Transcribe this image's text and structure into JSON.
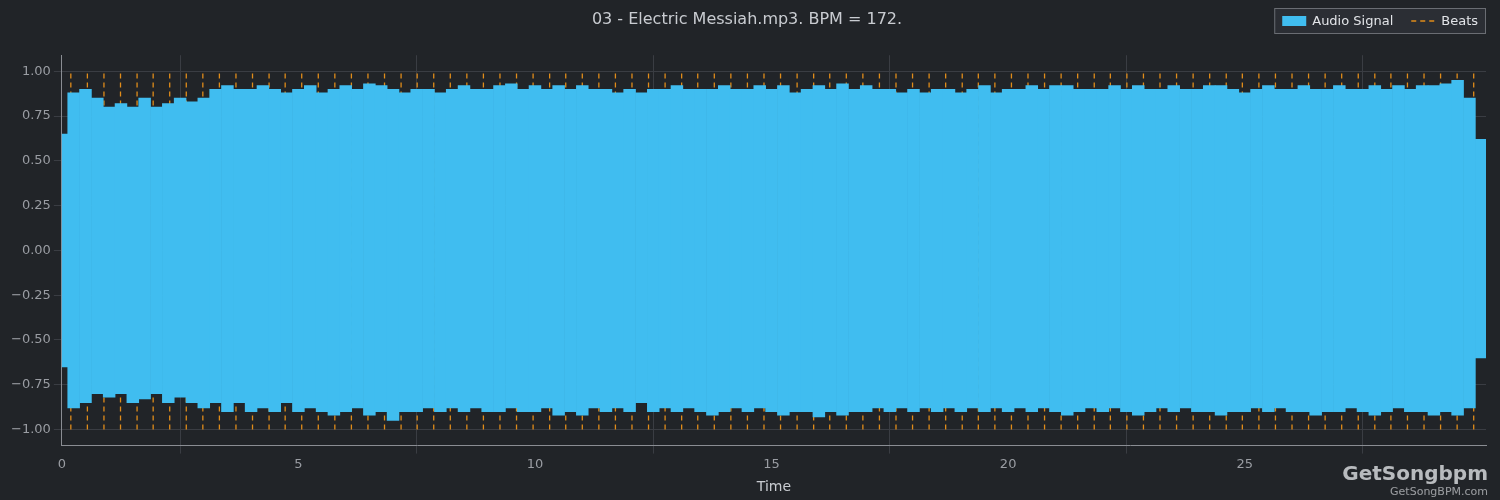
{
  "chart_data": {
    "type": "bar",
    "title": "03 - Electric Messiah.mp3. BPM = 172.",
    "x_label": "Time",
    "xlim": [
      0,
      30.1
    ],
    "xticks": [
      0,
      5,
      10,
      15,
      20,
      25
    ],
    "ylim": [
      -1.09,
      1.09
    ],
    "yticks": [
      {
        "value": -1,
        "label": "−1.00"
      },
      {
        "value": -0.75,
        "label": "−0.75"
      },
      {
        "value": -0.5,
        "label": "−0.50"
      },
      {
        "value": -0.25,
        "label": "−0.25"
      },
      {
        "value": 0,
        "label": "0.00"
      },
      {
        "value": 0.25,
        "label": "0.25"
      },
      {
        "value": 0.5,
        "label": "0.50"
      },
      {
        "value": 0.75,
        "label": "0.75"
      },
      {
        "value": 1,
        "label": "1.00"
      }
    ],
    "grid": true,
    "legend": "top-right",
    "annotations": [
      "GetSongbpm",
      "GetSongBPM.com"
    ],
    "series": [
      {
        "name": "Audio Signal",
        "type": "bar",
        "color": "#40bdf0",
        "x": [
          0,
          0.25,
          0.5,
          0.75,
          1,
          1.25,
          1.5,
          1.75,
          2,
          2.25,
          2.5,
          2.75,
          3,
          3.25,
          3.5,
          3.75,
          4,
          4.25,
          4.5,
          4.75,
          5,
          5.25,
          5.5,
          5.75,
          6,
          6.25,
          6.5,
          6.75,
          7,
          7.25,
          7.5,
          7.75,
          8,
          8.25,
          8.5,
          8.75,
          9,
          9.25,
          9.5,
          9.75,
          10,
          10.25,
          10.5,
          10.75,
          11,
          11.25,
          11.5,
          11.75,
          12,
          12.25,
          12.5,
          12.75,
          13,
          13.25,
          13.5,
          13.75,
          14,
          14.25,
          14.5,
          14.75,
          15,
          15.25,
          15.5,
          15.75,
          16,
          16.25,
          16.5,
          16.75,
          17,
          17.25,
          17.5,
          17.75,
          18,
          18.25,
          18.5,
          18.75,
          19,
          19.25,
          19.5,
          19.75,
          20,
          20.25,
          20.5,
          20.75,
          21,
          21.25,
          21.5,
          21.75,
          22,
          22.25,
          22.5,
          22.75,
          23,
          23.25,
          23.5,
          23.75,
          24,
          24.25,
          24.5,
          24.75,
          25,
          25.25,
          25.5,
          25.75,
          26,
          26.25,
          26.5,
          26.75,
          27,
          27.25,
          27.5,
          27.75,
          28,
          28.25,
          28.5,
          28.75,
          29,
          29.25,
          29.5,
          29.75,
          30
        ],
        "values": [
          [
            -0.65,
            0.65
          ],
          [
            -0.88,
            0.88
          ],
          [
            -0.85,
            0.9
          ],
          [
            -0.8,
            0.85
          ],
          [
            -0.82,
            0.8
          ],
          [
            -0.8,
            0.82
          ],
          [
            -0.85,
            0.8
          ],
          [
            -0.83,
            0.85
          ],
          [
            -0.8,
            0.8
          ],
          [
            -0.85,
            0.82
          ],
          [
            -0.82,
            0.85
          ],
          [
            -0.85,
            0.83
          ],
          [
            -0.88,
            0.85
          ],
          [
            -0.85,
            0.9
          ],
          [
            -0.9,
            0.92
          ],
          [
            -0.85,
            0.9
          ],
          [
            -0.9,
            0.9
          ],
          [
            -0.88,
            0.92
          ],
          [
            -0.9,
            0.9
          ],
          [
            -0.85,
            0.88
          ],
          [
            -0.9,
            0.9
          ],
          [
            -0.88,
            0.92
          ],
          [
            -0.9,
            0.88
          ],
          [
            -0.92,
            0.9
          ],
          [
            -0.9,
            0.92
          ],
          [
            -0.88,
            0.9
          ],
          [
            -0.92,
            0.93
          ],
          [
            -0.9,
            0.92
          ],
          [
            -0.95,
            0.9
          ],
          [
            -0.9,
            0.88
          ],
          [
            -0.9,
            0.9
          ],
          [
            -0.88,
            0.9
          ],
          [
            -0.9,
            0.88
          ],
          [
            -0.88,
            0.9
          ],
          [
            -0.9,
            0.92
          ],
          [
            -0.88,
            0.9
          ],
          [
            -0.9,
            0.9
          ],
          [
            -0.9,
            0.92
          ],
          [
            -0.88,
            0.93
          ],
          [
            -0.9,
            0.9
          ],
          [
            -0.9,
            0.92
          ],
          [
            -0.88,
            0.9
          ],
          [
            -0.92,
            0.92
          ],
          [
            -0.9,
            0.9
          ],
          [
            -0.92,
            0.92
          ],
          [
            -0.88,
            0.9
          ],
          [
            -0.9,
            0.9
          ],
          [
            -0.88,
            0.88
          ],
          [
            -0.9,
            0.9
          ],
          [
            -0.85,
            0.88
          ],
          [
            -0.9,
            0.9
          ],
          [
            -0.88,
            0.9
          ],
          [
            -0.9,
            0.92
          ],
          [
            -0.88,
            0.9
          ],
          [
            -0.9,
            0.9
          ],
          [
            -0.92,
            0.9
          ],
          [
            -0.9,
            0.92
          ],
          [
            -0.88,
            0.9
          ],
          [
            -0.9,
            0.9
          ],
          [
            -0.88,
            0.92
          ],
          [
            -0.9,
            0.9
          ],
          [
            -0.92,
            0.92
          ],
          [
            -0.9,
            0.88
          ],
          [
            -0.9,
            0.9
          ],
          [
            -0.93,
            0.92
          ],
          [
            -0.9,
            0.9
          ],
          [
            -0.92,
            0.93
          ],
          [
            -0.9,
            0.9
          ],
          [
            -0.9,
            0.92
          ],
          [
            -0.88,
            0.9
          ],
          [
            -0.9,
            0.9
          ],
          [
            -0.88,
            0.88
          ],
          [
            -0.9,
            0.9
          ],
          [
            -0.88,
            0.88
          ],
          [
            -0.9,
            0.9
          ],
          [
            -0.88,
            0.9
          ],
          [
            -0.9,
            0.88
          ],
          [
            -0.88,
            0.9
          ],
          [
            -0.9,
            0.92
          ],
          [
            -0.88,
            0.88
          ],
          [
            -0.9,
            0.9
          ],
          [
            -0.88,
            0.9
          ],
          [
            -0.9,
            0.92
          ],
          [
            -0.88,
            0.9
          ],
          [
            -0.9,
            0.92
          ],
          [
            -0.92,
            0.92
          ],
          [
            -0.9,
            0.9
          ],
          [
            -0.88,
            0.9
          ],
          [
            -0.9,
            0.9
          ],
          [
            -0.88,
            0.92
          ],
          [
            -0.9,
            0.9
          ],
          [
            -0.92,
            0.92
          ],
          [
            -0.9,
            0.9
          ],
          [
            -0.88,
            0.9
          ],
          [
            -0.9,
            0.92
          ],
          [
            -0.88,
            0.9
          ],
          [
            -0.9,
            0.9
          ],
          [
            -0.9,
            0.92
          ],
          [
            -0.92,
            0.92
          ],
          [
            -0.9,
            0.9
          ],
          [
            -0.9,
            0.88
          ],
          [
            -0.88,
            0.9
          ],
          [
            -0.9,
            0.92
          ],
          [
            -0.88,
            0.9
          ],
          [
            -0.9,
            0.9
          ],
          [
            -0.9,
            0.92
          ],
          [
            -0.92,
            0.9
          ],
          [
            -0.9,
            0.9
          ],
          [
            -0.9,
            0.92
          ],
          [
            -0.88,
            0.9
          ],
          [
            -0.9,
            0.9
          ],
          [
            -0.92,
            0.92
          ],
          [
            -0.9,
            0.9
          ],
          [
            -0.88,
            0.92
          ],
          [
            -0.9,
            0.9
          ],
          [
            -0.9,
            0.92
          ],
          [
            -0.92,
            0.92
          ],
          [
            -0.9,
            0.93
          ],
          [
            -0.92,
            0.95
          ],
          [
            -0.88,
            0.85
          ],
          [
            -0.6,
            0.62
          ]
        ]
      },
      {
        "name": "Beats",
        "type": "line",
        "color": "#e08c1a",
        "line_style": "dashed",
        "x": [
          0.19,
          0.54,
          0.89,
          1.24,
          1.59,
          1.93,
          2.28,
          2.63,
          2.98,
          3.33,
          3.68,
          4.03,
          4.38,
          4.72,
          5.07,
          5.42,
          5.77,
          6.12,
          6.47,
          6.82,
          7.17,
          7.51,
          7.86,
          8.21,
          8.56,
          8.91,
          9.26,
          9.61,
          9.96,
          10.31,
          10.65,
          11.0,
          11.35,
          11.7,
          12.05,
          12.4,
          12.75,
          13.1,
          13.44,
          13.79,
          14.14,
          14.49,
          14.84,
          15.19,
          15.54,
          15.89,
          16.23,
          16.58,
          16.93,
          17.28,
          17.63,
          17.98,
          18.33,
          18.68,
          19.03,
          19.37,
          19.72,
          20.07,
          20.42,
          20.77,
          21.12,
          21.47,
          21.82,
          22.16,
          22.51,
          22.86,
          23.21,
          23.56,
          23.91,
          24.26,
          24.61,
          24.95,
          25.3,
          25.65,
          26.0,
          26.35,
          26.7,
          27.05,
          27.4,
          27.75,
          28.09,
          28.44,
          28.79,
          29.14,
          29.49,
          29.84
        ],
        "values": [
          [
            -1,
            1
          ],
          [
            -1,
            1
          ],
          [
            -1,
            1
          ],
          [
            -1,
            1
          ],
          [
            -1,
            1
          ],
          [
            -1,
            1
          ],
          [
            -1,
            1
          ],
          [
            -1,
            1
          ],
          [
            -1,
            1
          ],
          [
            -1,
            1
          ],
          [
            -1,
            1
          ],
          [
            -1,
            1
          ],
          [
            -1,
            1
          ],
          [
            -1,
            1
          ],
          [
            -1,
            1
          ],
          [
            -1,
            1
          ],
          [
            -1,
            1
          ],
          [
            -1,
            1
          ],
          [
            -1,
            1
          ],
          [
            -1,
            1
          ],
          [
            -1,
            1
          ],
          [
            -1,
            1
          ],
          [
            -1,
            1
          ],
          [
            -1,
            1
          ],
          [
            -1,
            1
          ],
          [
            -1,
            1
          ],
          [
            -1,
            1
          ],
          [
            -1,
            1
          ],
          [
            -1,
            1
          ],
          [
            -1,
            1
          ],
          [
            -1,
            1
          ],
          [
            -1,
            1
          ],
          [
            -1,
            1
          ],
          [
            -1,
            1
          ],
          [
            -1,
            1
          ],
          [
            -1,
            1
          ],
          [
            -1,
            1
          ],
          [
            -1,
            1
          ],
          [
            -1,
            1
          ],
          [
            -1,
            1
          ],
          [
            -1,
            1
          ],
          [
            -1,
            1
          ],
          [
            -1,
            1
          ],
          [
            -1,
            1
          ],
          [
            -1,
            1
          ],
          [
            -1,
            1
          ],
          [
            -1,
            1
          ],
          [
            -1,
            1
          ],
          [
            -1,
            1
          ],
          [
            -1,
            1
          ],
          [
            -1,
            1
          ],
          [
            -1,
            1
          ],
          [
            -1,
            1
          ],
          [
            -1,
            1
          ],
          [
            -1,
            1
          ],
          [
            -1,
            1
          ],
          [
            -1,
            1
          ],
          [
            -1,
            1
          ],
          [
            -1,
            1
          ],
          [
            -1,
            1
          ],
          [
            -1,
            1
          ],
          [
            -1,
            1
          ],
          [
            -1,
            1
          ],
          [
            -1,
            1
          ],
          [
            -1,
            1
          ],
          [
            -1,
            1
          ],
          [
            -1,
            1
          ],
          [
            -1,
            1
          ],
          [
            -1,
            1
          ],
          [
            -1,
            1
          ],
          [
            -1,
            1
          ],
          [
            -1,
            1
          ],
          [
            -1,
            1
          ],
          [
            -1,
            1
          ],
          [
            -1,
            1
          ],
          [
            -1,
            1
          ],
          [
            -1,
            1
          ],
          [
            -1,
            1
          ],
          [
            -1,
            1
          ],
          [
            -1,
            1
          ],
          [
            -1,
            1
          ],
          [
            -1,
            1
          ],
          [
            -1,
            1
          ],
          [
            -1,
            1
          ],
          [
            -1,
            1
          ],
          [
            -1,
            1
          ]
        ]
      }
    ]
  }
}
